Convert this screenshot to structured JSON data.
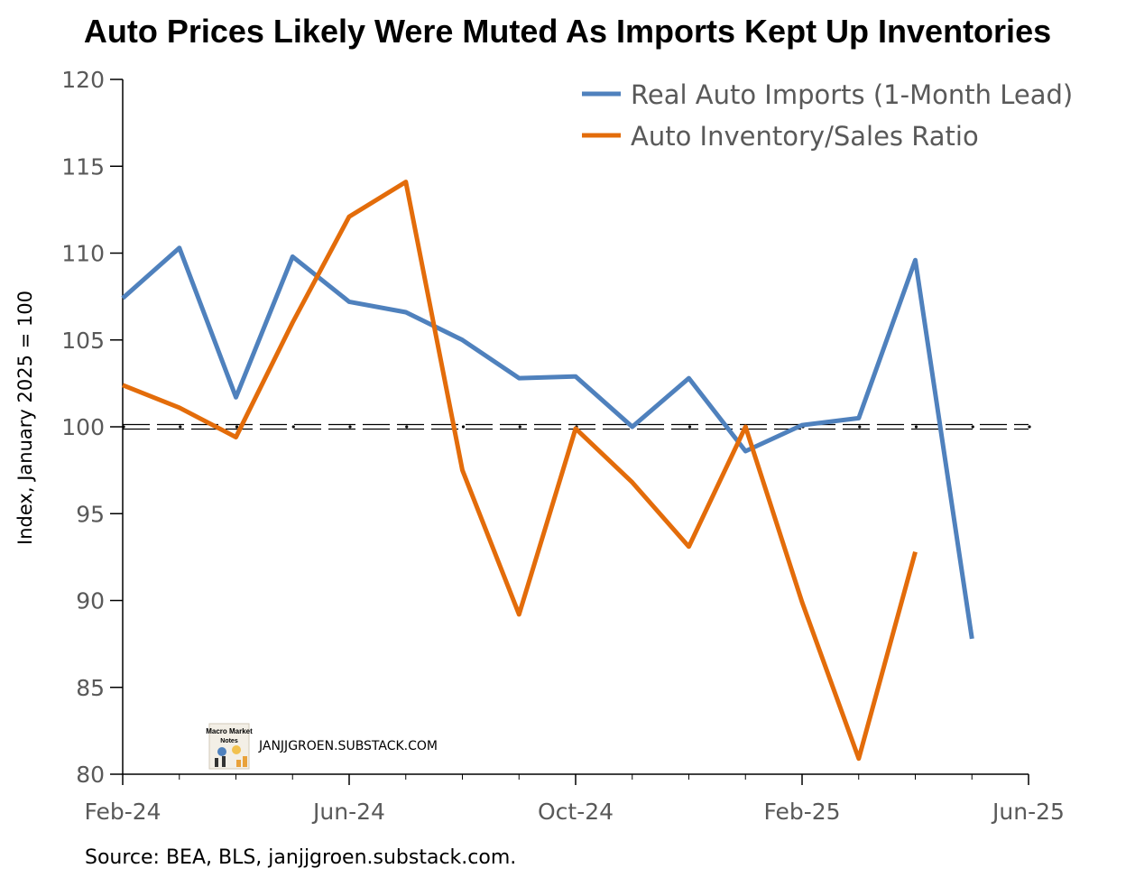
{
  "chart_data": {
    "type": "line",
    "title": "Auto Prices Likely Were Muted As Imports Kept Up Inventories",
    "ylabel": "Index, January 2025 = 100",
    "xlabel": "",
    "ylim": [
      80,
      120
    ],
    "yticks": [
      "80",
      "85",
      "90",
      "95",
      "100",
      "105",
      "110",
      "115",
      "120"
    ],
    "x_tick_labels": [
      "Feb-24",
      "Jun-24",
      "Oct-24",
      "Feb-25",
      "Jun-25"
    ],
    "x": [
      "Feb-24",
      "Mar-24",
      "Apr-24",
      "May-24",
      "Jun-24",
      "Jul-24",
      "Aug-24",
      "Sep-24",
      "Oct-24",
      "Nov-24",
      "Dec-24",
      "Jan-25",
      "Feb-25",
      "Mar-25",
      "Apr-25",
      "May-25"
    ],
    "series": [
      {
        "name": "Real Auto Imports (1-Month Lead)",
        "color": "#4F81BD",
        "values": [
          107.4,
          110.3,
          101.7,
          109.8,
          107.2,
          106.6,
          105.0,
          102.8,
          102.9,
          100.0,
          102.8,
          98.6,
          100.1,
          100.5,
          109.6,
          87.8
        ]
      },
      {
        "name": "Auto Inventory/Sales Ratio",
        "color": "#E36C0A",
        "values": [
          102.4,
          101.1,
          99.4,
          106.0,
          112.1,
          114.1,
          97.5,
          89.2,
          99.9,
          96.8,
          93.1,
          100.0,
          89.9,
          80.9,
          92.8,
          null
        ]
      }
    ],
    "reference_line": {
      "y": 100,
      "style": "dashed"
    },
    "legend": "top-right",
    "grid": false
  },
  "watermark": {
    "logo_text": "Macro Market Notes",
    "text": "JANJJGROEN.SUBSTACK.COM"
  },
  "source": "Source: BEA, BLS, janjjgroen.substack.com."
}
